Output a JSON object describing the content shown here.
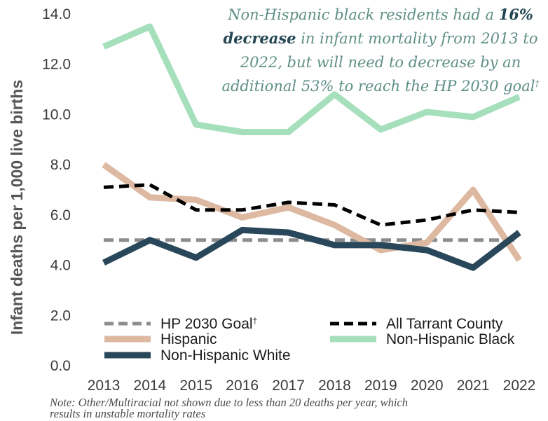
{
  "chart_data": {
    "type": "line",
    "x": [
      "2013",
      "2014",
      "2015",
      "2016",
      "2017",
      "2018",
      "2019",
      "2020",
      "2021",
      "2022"
    ],
    "ylabel": "Infant deaths per 1,000 live births",
    "ylim": [
      0,
      14
    ],
    "yticks": [
      "0.0",
      "2.0",
      "4.0",
      "6.0",
      "8.0",
      "10.0",
      "12.0",
      "14.0"
    ],
    "grid": false,
    "series": [
      {
        "name": "HP 2030 Goal",
        "name_superscript": "†",
        "color": "#8c8c8c",
        "style": "dashed",
        "values": [
          5.0,
          5.0,
          5.0,
          5.0,
          5.0,
          5.0,
          5.0,
          5.0,
          5.0,
          5.0
        ]
      },
      {
        "name": "All Tarrant County",
        "color": "#000000",
        "style": "dashed",
        "values": [
          7.1,
          7.2,
          6.2,
          6.2,
          6.5,
          6.4,
          5.6,
          5.8,
          6.2,
          6.1
        ]
      },
      {
        "name": "Hispanic",
        "color": "#deb9a2",
        "style": "solid",
        "values": [
          8.0,
          6.7,
          6.6,
          5.9,
          6.3,
          5.6,
          4.6,
          4.9,
          7.0,
          4.2
        ]
      },
      {
        "name": "Non-Hispanic Black",
        "color": "#a5dfbb",
        "style": "solid",
        "values": [
          12.7,
          13.5,
          9.6,
          9.3,
          9.3,
          10.8,
          9.4,
          10.1,
          9.9,
          10.7
        ]
      },
      {
        "name": "Non-Hispanic White",
        "color": "#28475a",
        "style": "solid",
        "values": [
          4.1,
          5.0,
          4.3,
          5.4,
          5.3,
          4.8,
          4.8,
          4.6,
          3.9,
          5.3
        ]
      }
    ],
    "annotation": {
      "lines": [
        [
          {
            "text": "Non-Hispanic black residents had a ",
            "em": false
          },
          {
            "text": "16%",
            "em": true
          }
        ],
        [
          {
            "text": "decrease",
            "em": true
          },
          {
            "text": " in infant mortality from 2013 to",
            "em": false
          }
        ],
        [
          {
            "text": "2022, but will need to decrease by an",
            "em": false
          }
        ],
        [
          {
            "text": "additional 53% to reach the HP 2030 goal",
            "em": false
          },
          {
            "text": "†",
            "em": false,
            "sup": true
          }
        ]
      ]
    },
    "legend_position": "bottom-inside",
    "footnote": [
      "Note: Other/Multiracial not shown due to less than 20 deaths per year, which",
      "results in unstable mortality rates"
    ]
  }
}
